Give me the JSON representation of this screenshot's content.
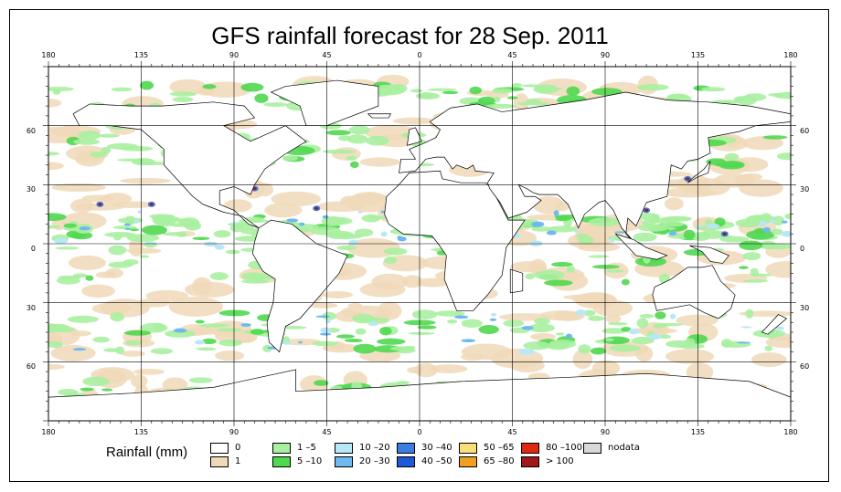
{
  "title": "GFS rainfall forecast for 28 Sep. 2011",
  "map": {
    "projection": "equirectangular",
    "lon_ticks_top": [
      "180",
      "135",
      "90",
      "45",
      "0",
      "45",
      "90",
      "135",
      "180"
    ],
    "lon_ticks_bottom": [
      "180",
      "135",
      "90",
      "45",
      "0",
      "45",
      "90",
      "135",
      "180"
    ],
    "lat_ticks_left": [
      "60",
      "30",
      "0",
      "30",
      "60"
    ],
    "lat_ticks_right": [
      "60",
      "30",
      "0",
      "30",
      "60"
    ],
    "grid": true
  },
  "legend": {
    "title": "Rainfall (mm)",
    "items": [
      {
        "label": "0",
        "color": "#ffffff"
      },
      {
        "label": "1",
        "color": "#f0d9b8"
      },
      {
        "label": "1 –5",
        "color": "#a8f0a0"
      },
      {
        "label": "5 –10",
        "color": "#50d850"
      },
      {
        "label": "10 –20",
        "color": "#b8e8f8"
      },
      {
        "label": "20 –30",
        "color": "#70b8f0"
      },
      {
        "label": "30 –40",
        "color": "#3a7ee0"
      },
      {
        "label": "40 –50",
        "color": "#1c5ad8"
      },
      {
        "label": "50 –65",
        "color": "#f8e078"
      },
      {
        "label": "65 –80",
        "color": "#f0a020"
      },
      {
        "label": "80 –100",
        "color": "#e02810"
      },
      {
        "label": "> 100",
        "color": "#a01818"
      },
      {
        "label": "nodata",
        "color": "#d8d8d8"
      }
    ]
  }
}
